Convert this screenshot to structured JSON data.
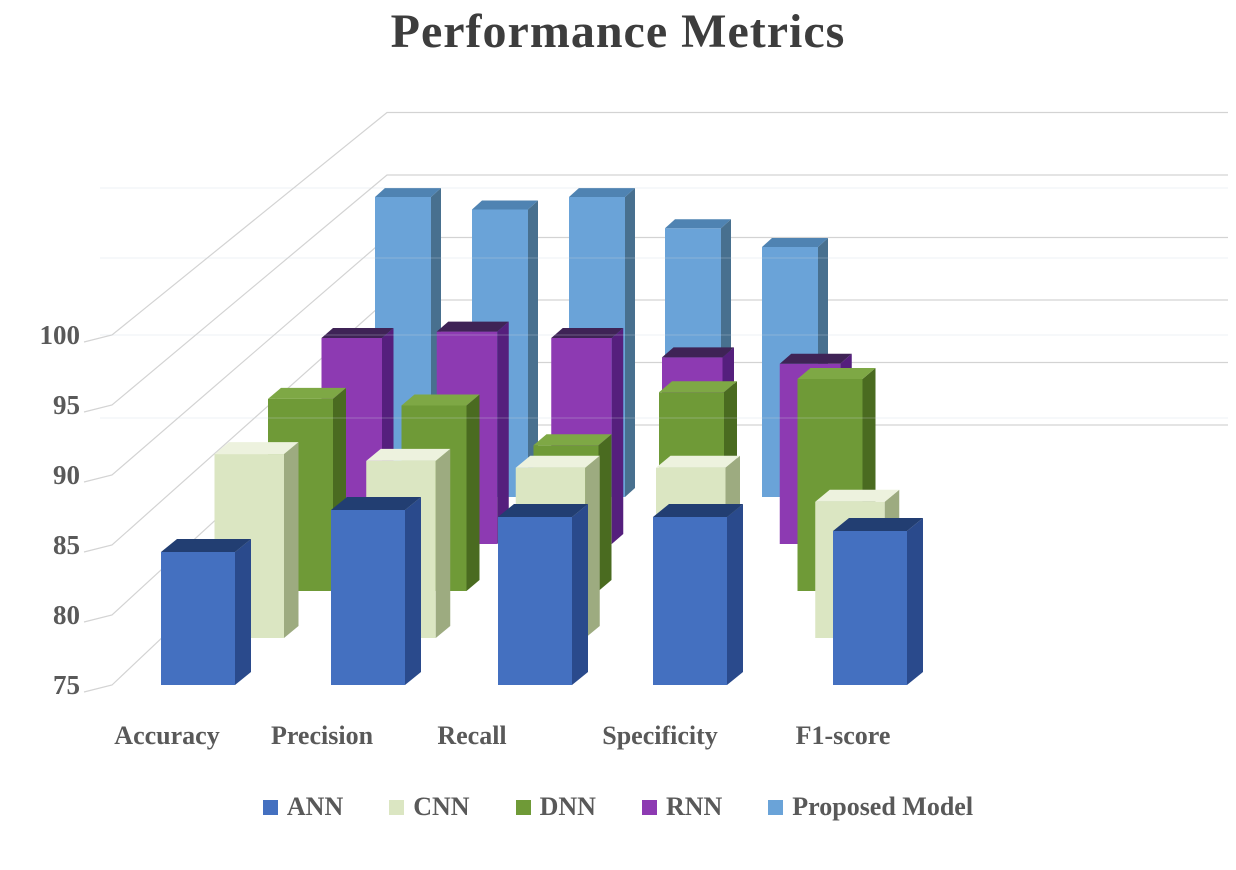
{
  "chart_data": {
    "type": "bar",
    "subtype": "3d-column",
    "title": "Performance Metrics",
    "xlabel": "",
    "ylabel": "",
    "ylim": [
      75,
      100
    ],
    "yticks": [
      75,
      80,
      85,
      90,
      95,
      100
    ],
    "grid": true,
    "legend_position": "bottom",
    "text_color": "#595959",
    "grid_color": "#d3d3d3",
    "categories": [
      "Accuracy",
      "Precision",
      "Recall",
      "Specificity",
      "F1-score"
    ],
    "series": [
      {
        "name": "ANN",
        "values": [
          84.5,
          87.5,
          87,
          87,
          86
        ],
        "colors": {
          "front": "#4470c0",
          "side": "#2a4a8c",
          "top": "#223e72"
        }
      },
      {
        "name": "CNN",
        "values": [
          88.5,
          88,
          87.5,
          87.5,
          85
        ],
        "colors": {
          "front": "#dbe6c2",
          "side": "#9dab80",
          "top": "#edf2de"
        }
      },
      {
        "name": "DNN",
        "values": [
          89.5,
          89,
          86,
          90,
          91
        ],
        "colors": {
          "front": "#6f9a37",
          "side": "#4a6b20",
          "top": "#7ea845"
        }
      },
      {
        "name": "RNN",
        "values": [
          91,
          91.5,
          91,
          89.5,
          89
        ],
        "colors": {
          "front": "#8d3ab2",
          "side": "#551f7d",
          "top": "#3f2356"
        }
      },
      {
        "name": "Proposed Model",
        "values": [
          99,
          98,
          99,
          96.5,
          95
        ],
        "colors": {
          "front": "#6aa3d8",
          "side": "#48708f",
          "top": "#4f83b2"
        }
      }
    ]
  }
}
